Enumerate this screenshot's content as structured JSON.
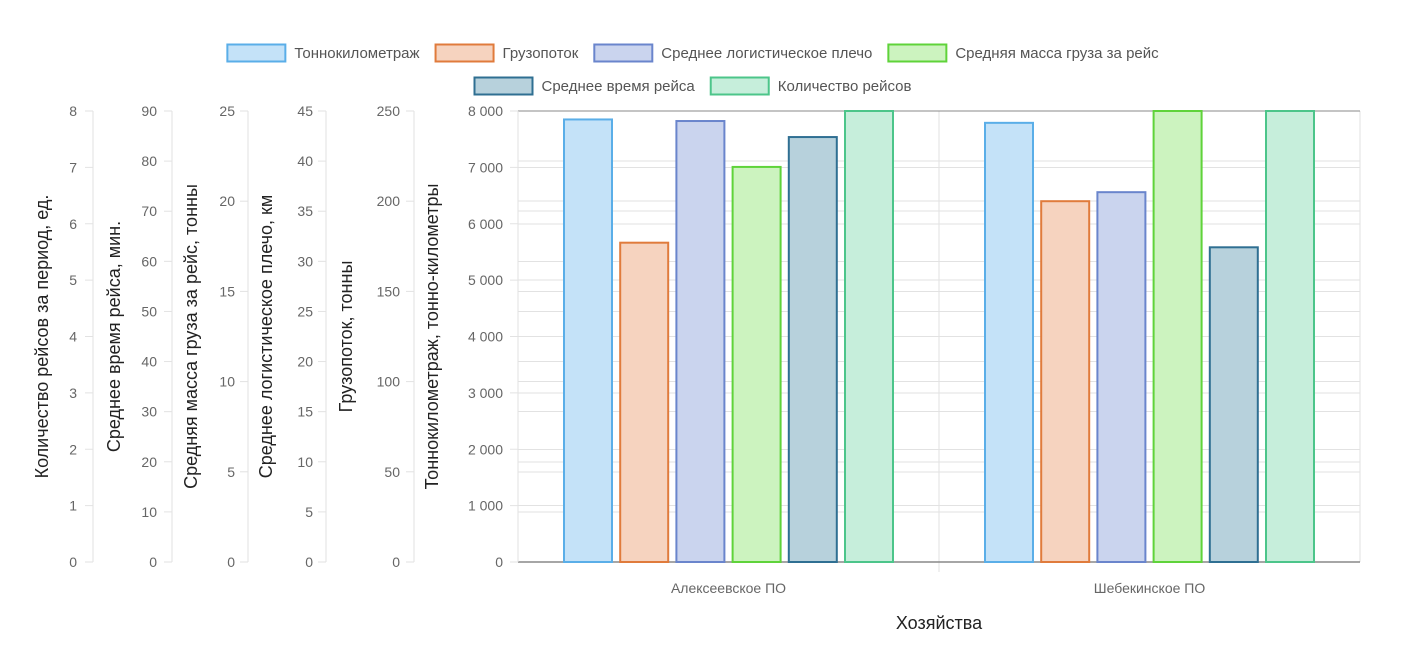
{
  "chart_data": {
    "type": "bar",
    "categories": [
      "Алексеевское ПО",
      "Шебекинское ПО"
    ],
    "xlabel": "Хозяйства",
    "legend_position": "top",
    "grid": true,
    "series": [
      {
        "name": "Тоннокилометраж",
        "axis": "tkm",
        "values": [
          7850,
          7790
        ],
        "color": "#5aaee8",
        "fill": "#c4e2f8"
      },
      {
        "name": "Грузопоток",
        "axis": "flow",
        "values": [
          177,
          200
        ],
        "color": "#e07b3c",
        "fill": "#f6d3bf"
      },
      {
        "name": "Среднее логистическое плечо",
        "axis": "shoulder",
        "values": [
          44,
          36.9
        ],
        "color": "#6a85cc",
        "fill": "#cad4ee"
      },
      {
        "name": "Средняя масса груза за рейс",
        "axis": "mass",
        "values": [
          21.9,
          25
        ],
        "color": "#5fd33a",
        "fill": "#ccf3bf"
      },
      {
        "name": "Среднее время рейса",
        "axis": "time",
        "values": [
          84.8,
          62.8
        ],
        "color": "#2f6f92",
        "fill": "#b7d1dc"
      },
      {
        "name": "Количество рейсов",
        "axis": "trips",
        "values": [
          8,
          8
        ],
        "color": "#4cc58a",
        "fill": "#c6eedb"
      }
    ],
    "axes": [
      {
        "id": "trips",
        "label": "Количество рейсов за период, ед.",
        "ylim": [
          0,
          8
        ],
        "ticks": [
          "0",
          "1",
          "2",
          "3",
          "4",
          "5",
          "6",
          "7",
          "8"
        ]
      },
      {
        "id": "time",
        "label": "Среднее время рейса, мин.",
        "ylim": [
          0,
          90
        ],
        "ticks": [
          "0",
          "10",
          "20",
          "30",
          "40",
          "50",
          "60",
          "70",
          "80",
          "90"
        ]
      },
      {
        "id": "mass",
        "label": "Средняя масса груза за рейс, тонны",
        "ylim": [
          0,
          25
        ],
        "ticks": [
          "0",
          "5",
          "10",
          "15",
          "20",
          "25"
        ]
      },
      {
        "id": "shoulder",
        "label": "Среднее логистическое плечо, км",
        "ylim": [
          0,
          45
        ],
        "ticks": [
          "0",
          "5",
          "10",
          "15",
          "20",
          "25",
          "30",
          "35",
          "40",
          "45"
        ]
      },
      {
        "id": "flow",
        "label": "Грузопоток, тонны",
        "ylim": [
          0,
          250
        ],
        "ticks": [
          "0",
          "50",
          "100",
          "150",
          "200",
          "250"
        ]
      },
      {
        "id": "tkm",
        "label": "Тоннокилометраж, тонно-километры",
        "ylim": [
          0,
          8000
        ],
        "ticks": [
          "0",
          "1 000",
          "2 000",
          "3 000",
          "4 000",
          "5 000",
          "6 000",
          "7 000",
          "8 000"
        ]
      }
    ]
  }
}
